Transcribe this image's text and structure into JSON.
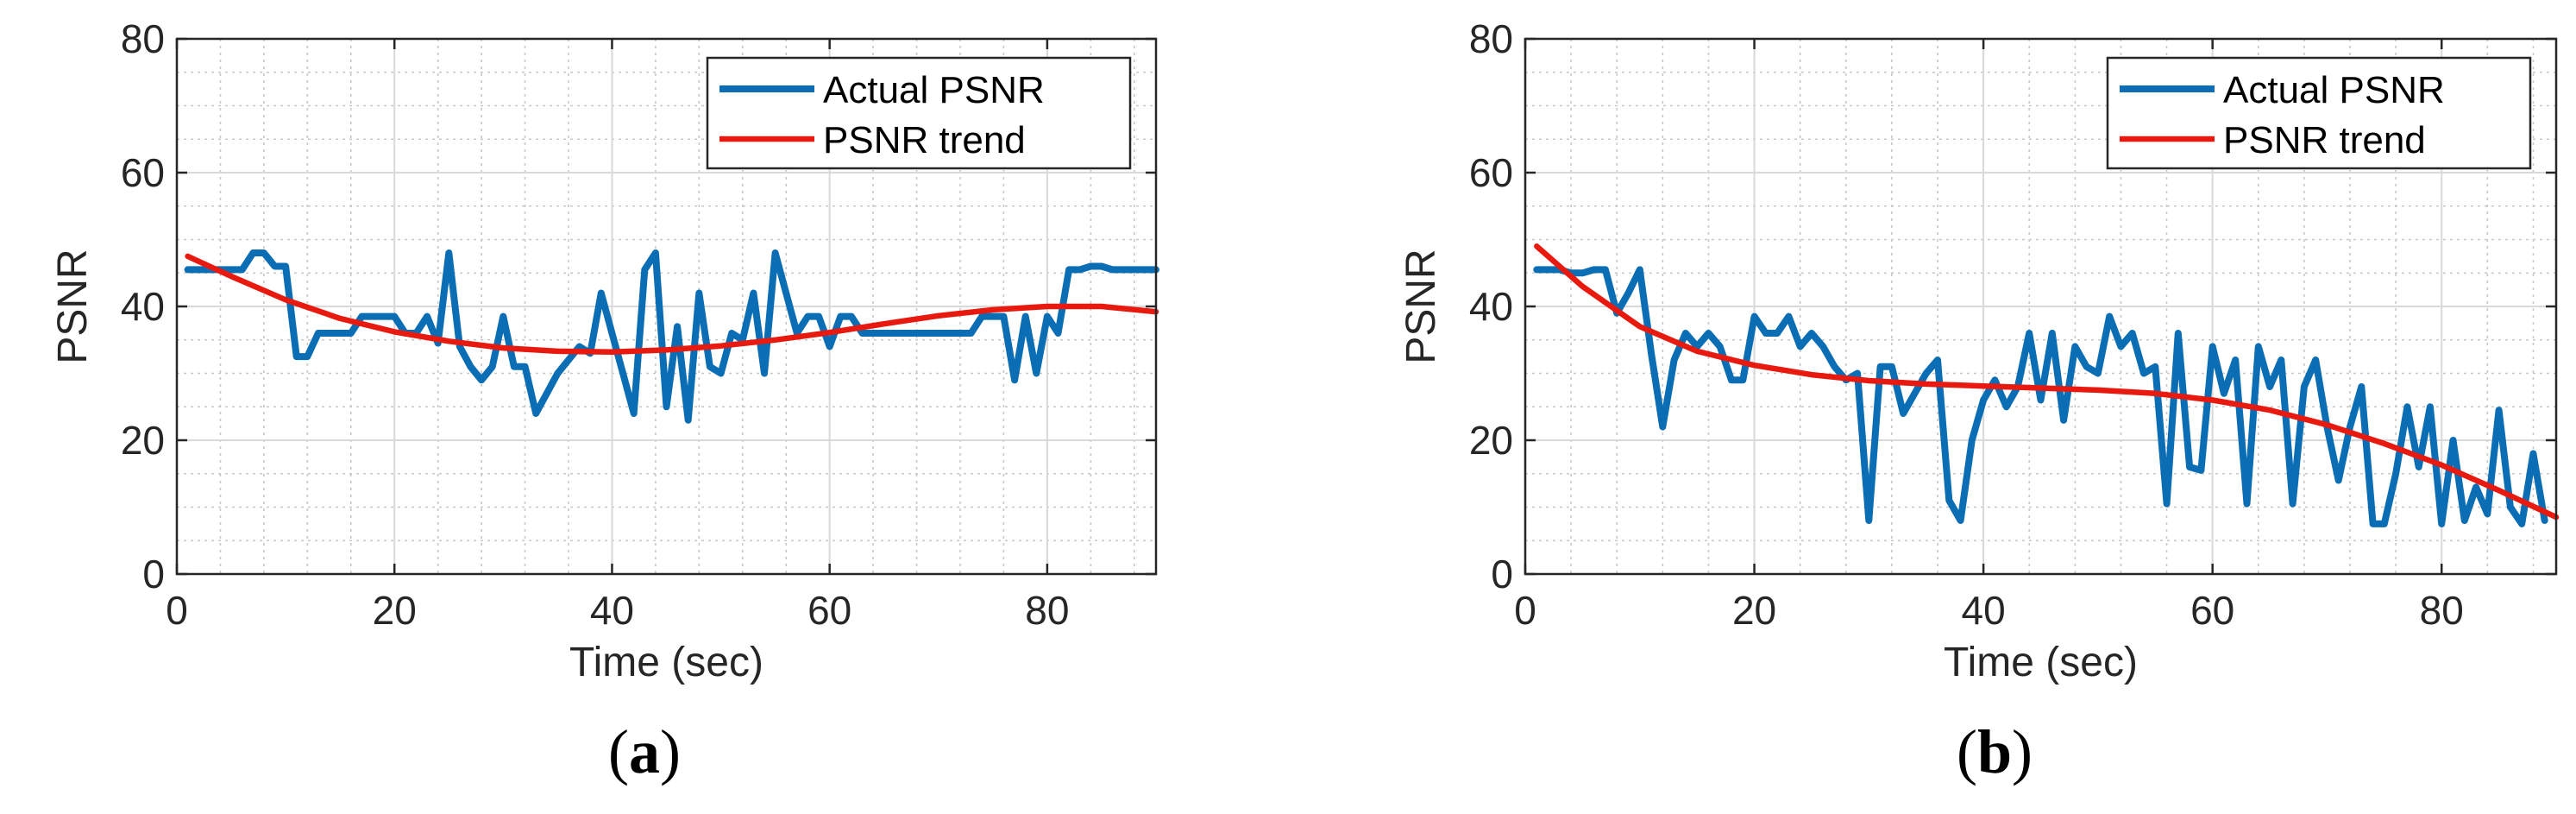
{
  "chart_data": [
    {
      "type": "line",
      "panel_label": "a",
      "xlabel": "Time (sec)",
      "ylabel": "PSNR",
      "xlim": [
        0,
        90
      ],
      "ylim": [
        0,
        80
      ],
      "xticks": [
        0,
        20,
        40,
        60,
        80
      ],
      "yticks": [
        0,
        20,
        40,
        60,
        80
      ],
      "grid": true,
      "minor_grid": true,
      "legend_position": "top-right",
      "series": [
        {
          "name": "Actual PSNR",
          "color": "#0b6db3",
          "x": [
            1,
            2,
            3,
            4,
            5,
            6,
            7,
            8,
            9,
            10,
            11,
            12,
            13,
            14,
            15,
            16,
            17,
            18,
            19,
            20,
            21,
            22,
            23,
            24,
            25,
            26,
            27,
            28,
            29,
            30,
            31,
            32,
            33,
            34,
            35,
            36,
            37,
            38,
            39,
            40,
            41,
            42,
            43,
            44,
            45,
            46,
            47,
            48,
            49,
            50,
            51,
            52,
            53,
            54,
            55,
            56,
            57,
            58,
            59,
            60,
            61,
            62,
            63,
            64,
            65,
            66,
            67,
            68,
            69,
            70,
            71,
            72,
            73,
            74,
            75,
            76,
            77,
            78,
            79,
            80,
            81,
            82,
            83,
            84,
            85,
            86,
            87,
            88,
            89,
            90
          ],
          "y": [
            45.5,
            45.5,
            45.5,
            45.5,
            45.5,
            45.5,
            48,
            48,
            46,
            46,
            32.5,
            32.5,
            36,
            36,
            36,
            36,
            38.5,
            38.5,
            38.5,
            38.5,
            36,
            36,
            38.5,
            34.5,
            48,
            34,
            31,
            29,
            31,
            38.5,
            31,
            31,
            24,
            27,
            30,
            32,
            34,
            33,
            42,
            36,
            30,
            24,
            45.5,
            48,
            25,
            37,
            23,
            42,
            31,
            30,
            36,
            35,
            42,
            30,
            48,
            42,
            36,
            38.5,
            38.5,
            34,
            38.5,
            38.5,
            36,
            36,
            36,
            36,
            36,
            36,
            36,
            36,
            36,
            36,
            36,
            38.5,
            38.5,
            38.5,
            29,
            38.5,
            30,
            38.5,
            36,
            45.5,
            45.5,
            46,
            46,
            45.5,
            45.5,
            45.5,
            45.5,
            45.5
          ]
        },
        {
          "name": "PSNR trend",
          "color": "#e8190e",
          "x": [
            1,
            5,
            10,
            15,
            20,
            25,
            30,
            35,
            40,
            45,
            50,
            55,
            60,
            65,
            70,
            75,
            80,
            85,
            90
          ],
          "y": [
            47.5,
            44.5,
            41,
            38.2,
            36.2,
            34.8,
            33.8,
            33.3,
            33.2,
            33.5,
            34.1,
            35,
            36.1,
            37.4,
            38.6,
            39.5,
            40,
            40,
            39.2
          ]
        }
      ]
    },
    {
      "type": "line",
      "panel_label": "b",
      "xlabel": "Time (sec)",
      "ylabel": "PSNR",
      "xlim": [
        0,
        90
      ],
      "ylim": [
        0,
        80
      ],
      "xticks": [
        0,
        20,
        40,
        60,
        80
      ],
      "yticks": [
        0,
        20,
        40,
        60,
        80
      ],
      "grid": true,
      "minor_grid": true,
      "legend_position": "top-right",
      "series": [
        {
          "name": "Actual PSNR",
          "color": "#0b6db3",
          "x": [
            1,
            2,
            3,
            4,
            5,
            6,
            7,
            8,
            9,
            10,
            11,
            12,
            13,
            14,
            15,
            16,
            17,
            18,
            19,
            20,
            21,
            22,
            23,
            24,
            25,
            26,
            27,
            28,
            29,
            30,
            31,
            32,
            33,
            34,
            35,
            36,
            37,
            38,
            39,
            40,
            41,
            42,
            43,
            44,
            45,
            46,
            47,
            48,
            49,
            50,
            51,
            52,
            53,
            54,
            55,
            56,
            57,
            58,
            59,
            60,
            61,
            62,
            63,
            64,
            65,
            66,
            67,
            68,
            69,
            70,
            71,
            72,
            73,
            74,
            75,
            76,
            77,
            78,
            79,
            80,
            81,
            82,
            83,
            84,
            85,
            86,
            87,
            88,
            89
          ],
          "y": [
            45.5,
            45.5,
            45.5,
            45,
            45,
            45.5,
            45.5,
            39,
            42,
            45.5,
            33,
            22,
            32,
            36,
            34,
            36,
            34,
            29,
            29,
            38.5,
            36,
            36,
            38.5,
            34,
            36,
            34,
            31,
            29,
            30,
            8,
            31,
            31,
            24,
            27,
            30,
            32,
            11,
            8,
            20,
            26,
            29,
            25,
            28,
            36,
            26,
            36,
            23,
            34,
            31,
            30,
            38.5,
            34,
            36,
            30,
            31,
            10.5,
            36,
            16,
            15.5,
            34,
            27,
            32,
            10.5,
            34,
            28,
            32,
            10.5,
            28,
            32,
            22,
            14,
            22,
            28,
            7.5,
            7.5,
            15,
            25,
            16,
            25,
            7.5,
            20,
            8,
            13,
            9,
            24.5,
            10,
            7.5,
            18,
            8
          ]
        },
        {
          "name": "PSNR trend",
          "color": "#e8190e",
          "x": [
            1,
            5,
            10,
            15,
            20,
            25,
            30,
            35,
            40,
            45,
            50,
            55,
            60,
            65,
            70,
            75,
            80,
            85,
            90
          ],
          "y": [
            49,
            43,
            37,
            33.3,
            31.2,
            29.8,
            28.9,
            28.4,
            28.1,
            27.8,
            27.5,
            27,
            26,
            24.5,
            22.3,
            19.5,
            16.3,
            12.5,
            8.5
          ]
        }
      ]
    }
  ]
}
